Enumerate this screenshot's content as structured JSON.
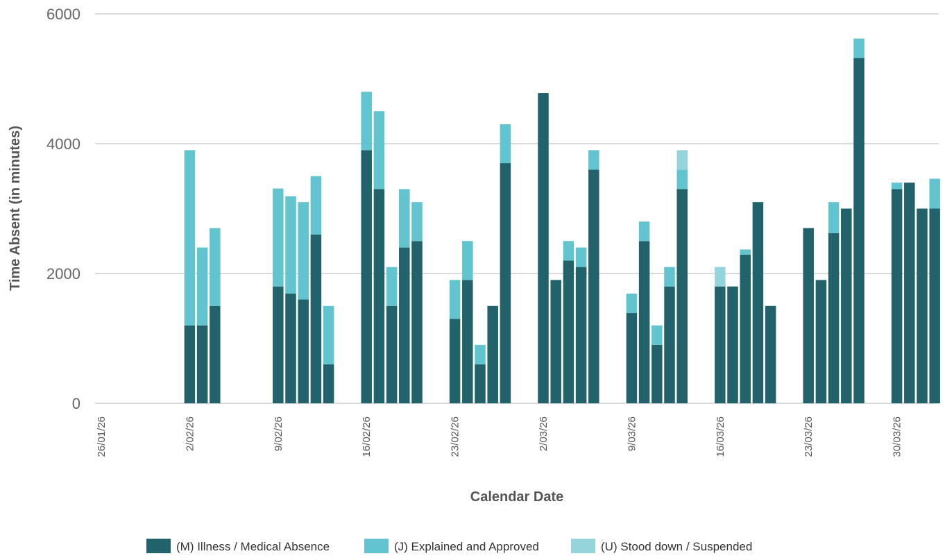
{
  "chart_data": {
    "type": "bar",
    "stacked": true,
    "title": "",
    "xlabel": "Calendar Date",
    "ylabel": "Time Absent (in minutes)",
    "ylim": [
      0,
      6000
    ],
    "yticks": [
      0,
      2000,
      4000,
      6000
    ],
    "grid": true,
    "legend_position": "bottom",
    "x_ticks": [
      {
        "date": "26/01/26",
        "label": "26/01/26"
      },
      {
        "date": "2/02/26",
        "label": "2/02/26"
      },
      {
        "date": "9/02/26",
        "label": "9/02/26"
      },
      {
        "date": "16/02/26",
        "label": "16/02/26"
      },
      {
        "date": "23/02/26",
        "label": "23/02/26"
      },
      {
        "date": "2/03/26",
        "label": "2/03/26"
      },
      {
        "date": "9/03/26",
        "label": "9/03/26"
      },
      {
        "date": "16/03/26",
        "label": "16/03/26"
      },
      {
        "date": "23/03/26",
        "label": "23/03/26"
      },
      {
        "date": "30/03/26",
        "label": "30/03/26"
      }
    ],
    "x": [
      "2/02/26",
      "3/02/26",
      "4/02/26",
      "9/02/26",
      "10/02/26",
      "11/02/26",
      "12/02/26",
      "13/02/26",
      "16/02/26",
      "17/02/26",
      "18/02/26",
      "19/02/26",
      "20/02/26",
      "23/02/26",
      "24/02/26",
      "25/02/26",
      "26/02/26",
      "27/02/26",
      "2/03/26",
      "3/03/26",
      "4/03/26",
      "5/03/26",
      "6/03/26",
      "9/03/26",
      "10/03/26",
      "11/03/26",
      "12/03/26",
      "13/03/26",
      "16/03/26",
      "17/03/26",
      "18/03/26",
      "19/03/26",
      "20/03/26",
      "23/03/26",
      "24/03/26",
      "25/03/26",
      "26/03/26",
      "27/03/26",
      "30/03/26",
      "31/03/26",
      "1/04/26",
      "2/04/26"
    ],
    "series": [
      {
        "name": "(M) Illness / Medical Absence",
        "color": "#22626a",
        "values": [
          1200,
          1200,
          1500,
          1800,
          1690,
          1600,
          2600,
          600,
          3900,
          3300,
          1500,
          2400,
          2500,
          1300,
          1900,
          600,
          1500,
          3700,
          4780,
          1900,
          2200,
          2100,
          3600,
          1390,
          2500,
          900,
          1800,
          3300,
          1800,
          1800,
          2290,
          3100,
          1500,
          2700,
          1900,
          2620,
          3000,
          5320,
          3300,
          3400,
          3000,
          3000
        ]
      },
      {
        "name": "(J) Explained and Approved",
        "color": "#62c4ce",
        "values": [
          2700,
          1200,
          1200,
          1510,
          1500,
          1500,
          900,
          900,
          900,
          1200,
          600,
          900,
          600,
          600,
          600,
          300,
          0,
          600,
          0,
          0,
          300,
          300,
          300,
          300,
          300,
          300,
          300,
          300,
          0,
          0,
          80,
          0,
          0,
          0,
          0,
          480,
          0,
          300,
          100,
          0,
          0,
          460
        ]
      },
      {
        "name": "(U) Stood down / Suspended",
        "color": "#94d5dc",
        "values": [
          0,
          0,
          0,
          0,
          0,
          0,
          0,
          0,
          0,
          0,
          0,
          0,
          0,
          0,
          0,
          0,
          0,
          0,
          0,
          0,
          0,
          0,
          0,
          0,
          0,
          0,
          0,
          300,
          300,
          0,
          0,
          0,
          0,
          0,
          0,
          0,
          0,
          0,
          0,
          0,
          0,
          0
        ]
      }
    ]
  }
}
